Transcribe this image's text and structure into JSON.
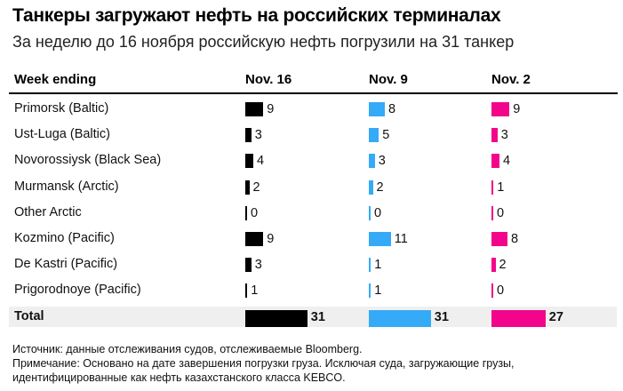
{
  "title": "Танкеры загружают нефть на российских терминалах",
  "subtitle": "За неделю до 16 ноября российскую нефть погрузили на 31 танкер",
  "chart_data": {
    "type": "table",
    "row_header": "Week ending",
    "columns": [
      "Nov. 16",
      "Nov. 9",
      "Nov. 2"
    ],
    "colors": [
      "#000000",
      "#35aaf6",
      "#f2058a"
    ],
    "rows": [
      {
        "label": "Primorsk (Baltic)",
        "values": [
          9,
          8,
          9
        ]
      },
      {
        "label": "Ust-Luga (Baltic)",
        "values": [
          3,
          5,
          3
        ]
      },
      {
        "label": "Novorossiysk (Black Sea)",
        "values": [
          4,
          3,
          4
        ]
      },
      {
        "label": "Murmansk (Arctic)",
        "values": [
          2,
          2,
          1
        ]
      },
      {
        "label": "Other Arctic",
        "values": [
          0,
          0,
          0
        ]
      },
      {
        "label": "Kozmino (Pacific)",
        "values": [
          9,
          11,
          8
        ]
      },
      {
        "label": "De Kastri (Pacific)",
        "values": [
          3,
          1,
          2
        ]
      },
      {
        "label": "Prigorodnoye (Pacific)",
        "values": [
          1,
          1,
          0
        ]
      }
    ],
    "total": {
      "label": "Total",
      "values": [
        31,
        31,
        27
      ]
    }
  },
  "footnotes": [
    "Источник: данные отслеживания судов, отслеживаемые Bloomberg.",
    "Примечание: Основано на дате завершения погрузки груза. Исключая суда, загружающие грузы,",
    "идентифицированные как нефть казахстанского класса KEBCO."
  ]
}
